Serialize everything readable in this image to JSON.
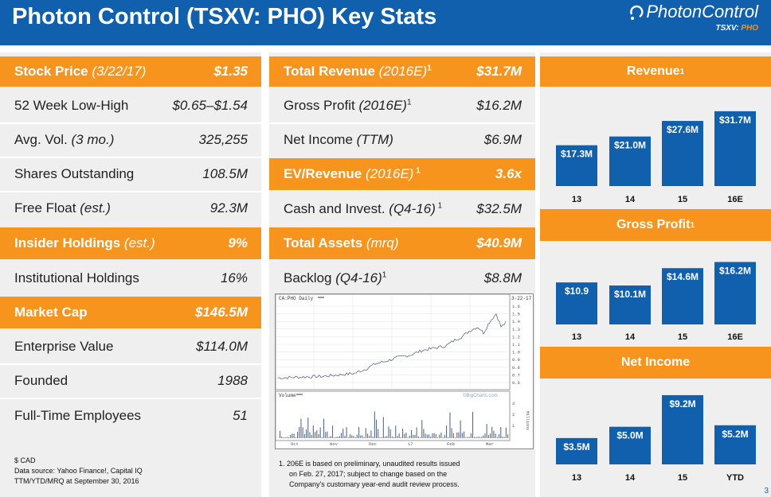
{
  "header": {
    "title": "Photon Control (TSXV: PHO) Key Stats",
    "logo_text": "PhotonControl",
    "logo_ticker_prefix": "TSXV: ",
    "logo_ticker_symbol": "PHO"
  },
  "colors": {
    "blue": "#1060ad",
    "orange": "#f7941d",
    "panel": "#efefef"
  },
  "left_stats": [
    {
      "label": "Stock Price",
      "label_em": " (3/22/17)",
      "value": "$1.35"
    },
    {
      "label": "52 Week Low-High",
      "label_em": "",
      "value": "$0.65–$1.54"
    },
    {
      "label": "Avg. Vol.",
      "label_em": " (3 mo.)",
      "value": "325,255"
    },
    {
      "label": "Shares Outstanding",
      "label_em": "",
      "value": "108.5M"
    },
    {
      "label": "Free Float",
      "label_em": " (est.)",
      "value": "92.3M"
    },
    {
      "label": "Insider Holdings",
      "label_em": " (est.)",
      "value": "9%"
    },
    {
      "label": "Institutional Holdings",
      "label_em": "",
      "value": "16%"
    },
    {
      "label": "Market Cap",
      "label_em": "",
      "value": "$146.5M"
    },
    {
      "label": "Enterprise Value",
      "label_em": "",
      "value": "$114.0M"
    },
    {
      "label": "Founded",
      "label_em": "",
      "value": "1988"
    },
    {
      "label": "Full-Time Employees",
      "label_em": "",
      "value": "51"
    }
  ],
  "left_footnote": [
    "$ CAD",
    "Data source: Yahoo Finance!, Capital IQ",
    "TTM/YTD/MRQ at September 30, 2016"
  ],
  "mid_stats": [
    {
      "label": "Total Revenue",
      "label_em": " (2016E)",
      "sup": "1",
      "value": "$31.7M"
    },
    {
      "label": "Gross Profit",
      "label_em": " (2016E)",
      "sup": "1",
      "value": "$16.2M"
    },
    {
      "label": "Net Income",
      "label_em": " (TTM)",
      "sup": "",
      "value": "$6.9M"
    },
    {
      "label": "EV/Revenue",
      "label_em": " (2016E)",
      "sup": " 1",
      "value": "3.6x"
    },
    {
      "label": "Cash and Invest.",
      "label_em": " (Q4-16)",
      "sup": " 1",
      "value": "$32.5M"
    },
    {
      "label": "Total Assets",
      "label_em": " (mrq)",
      "sup": "",
      "value": "$40.9M"
    },
    {
      "label": "Backlog",
      "label_em": " (Q4-16)",
      "sup": "1",
      "value": "$8.8M"
    }
  ],
  "mid_footnote": [
    "1. 206E is based on preliminary, unaudited results issued",
    "on Feb. 27, 2017; subject to change based on the",
    "Company's customary year-end audit review process."
  ],
  "stock_chart": {
    "price_label": "CA:PHO Daily",
    "date_label": "3-22-17",
    "volume_label": "Volume",
    "watermark": "©BigCharts.com",
    "price_ticks": [
      "1.6",
      "1.5",
      "1.4",
      "1.3",
      "1.2",
      "1.1",
      "1.0",
      "0.9",
      "0.8",
      "0.7",
      "0.6"
    ],
    "volume_ticks": [
      "3",
      "2",
      "1"
    ],
    "volume_unit": "Millions",
    "months": [
      "Oct",
      "Nov",
      "Dec",
      "17",
      "Feb",
      "Mar"
    ]
  },
  "chart_data": [
    {
      "type": "bar",
      "title": "Revenue",
      "title_sup": "1",
      "categories": [
        "13",
        "14",
        "15",
        "16E"
      ],
      "values": [
        17.3,
        21.0,
        27.6,
        31.7
      ],
      "labels": [
        "$17.3M",
        "$21.0M",
        "$27.6M",
        "$31.7M"
      ],
      "ylim": [
        0,
        32
      ]
    },
    {
      "type": "bar",
      "title": "Gross Profit",
      "title_sup": "1",
      "categories": [
        "13",
        "14",
        "15",
        "16E"
      ],
      "values": [
        10.9,
        10.1,
        14.6,
        16.2
      ],
      "labels": [
        "$10.9",
        "$10.1M",
        "$14.6M",
        "$16.2M"
      ],
      "ylim": [
        0,
        16.5
      ]
    },
    {
      "type": "bar",
      "title": "Net Income",
      "title_sup": "",
      "categories": [
        "13",
        "14",
        "15",
        "YTD"
      ],
      "values": [
        3.5,
        5.0,
        9.2,
        5.2
      ],
      "labels": [
        "$3.5M",
        "$5.0M",
        "$9.2M",
        "$5.2M"
      ],
      "ylim": [
        0,
        9.3
      ]
    }
  ],
  "page_number": "3"
}
